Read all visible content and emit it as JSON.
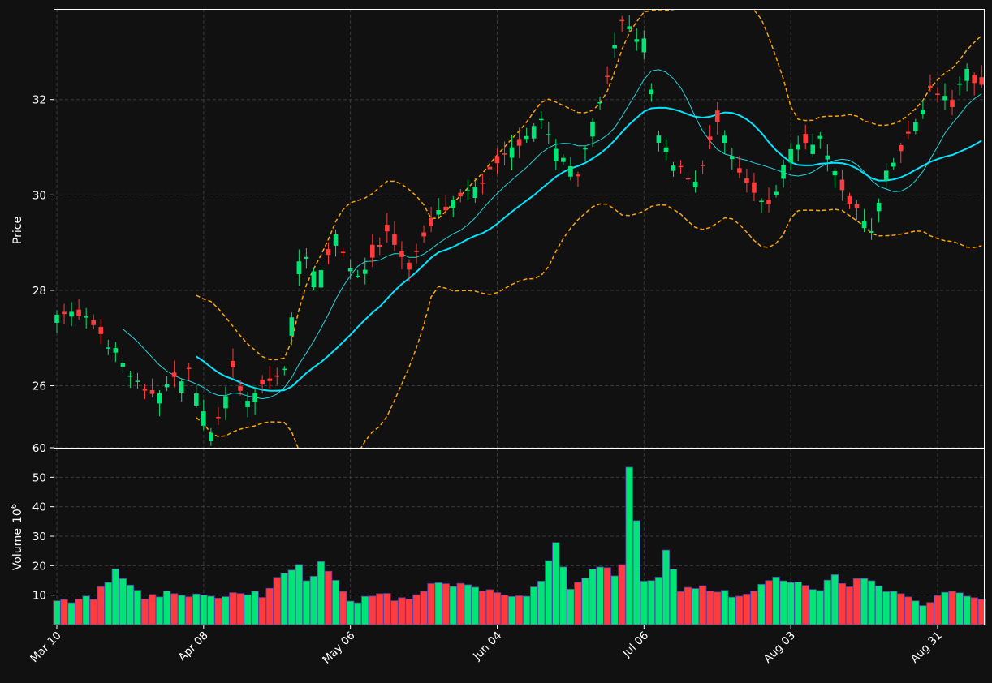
{
  "chart_data": {
    "type": "candlestick",
    "colors": {
      "background": "#111111",
      "up": "#00e676",
      "down": "#ff3b3b",
      "ma_short": "#22d3db",
      "ma_long": "#00e5ff",
      "bands": "#ffa500",
      "grid": "#3a3a3a",
      "axis": "#ffffff"
    },
    "price_panel": {
      "ylabel": "Price",
      "ylim": [
        24.7,
        33.9
      ],
      "yticks": [
        26,
        28,
        30,
        32
      ],
      "grid": true
    },
    "volume_panel": {
      "ylabel": "Volume",
      "ylabel_exp": "6",
      "ylim": [
        0,
        60
      ],
      "yticks": [
        10,
        20,
        30,
        40,
        50,
        60
      ],
      "grid": true
    },
    "x_tick_labels": [
      "Mar 10",
      "Apr 08",
      "May 06",
      "Jun 04",
      "Jul 06",
      "Aug 03",
      "Aug 31"
    ],
    "x_tick_index": [
      0,
      20,
      40,
      60,
      80,
      100,
      120
    ],
    "n_sessions": 127,
    "anchors": {
      "close": [
        [
          0,
          27.6
        ],
        [
          5,
          27.3
        ],
        [
          8,
          26.7
        ],
        [
          12,
          25.8
        ],
        [
          15,
          26.0
        ],
        [
          18,
          26.3
        ],
        [
          21,
          25.0
        ],
        [
          24,
          26.3
        ],
        [
          26,
          25.6
        ],
        [
          28,
          26.0
        ],
        [
          31,
          26.3
        ],
        [
          33,
          28.7
        ],
        [
          36,
          28.4
        ],
        [
          38,
          29.2
        ],
        [
          41,
          28.2
        ],
        [
          45,
          29.2
        ],
        [
          48,
          28.5
        ],
        [
          52,
          29.6
        ],
        [
          56,
          30.0
        ],
        [
          60,
          30.6
        ],
        [
          64,
          31.3
        ],
        [
          66,
          31.6
        ],
        [
          68,
          30.9
        ],
        [
          71,
          30.5
        ],
        [
          74,
          32.0
        ],
        [
          77,
          33.6
        ],
        [
          80,
          33.2
        ],
        [
          82,
          31.2
        ],
        [
          84,
          30.6
        ],
        [
          87,
          30.3
        ],
        [
          90,
          31.5
        ],
        [
          93,
          30.4
        ],
        [
          95,
          30.0
        ],
        [
          97,
          29.7
        ],
        [
          100,
          31.0
        ],
        [
          104,
          31.2
        ],
        [
          106,
          30.4
        ],
        [
          108,
          29.9
        ],
        [
          111,
          29.2
        ],
        [
          113,
          30.4
        ],
        [
          116,
          31.2
        ],
        [
          119,
          32.2
        ],
        [
          122,
          31.9
        ],
        [
          124,
          32.6
        ],
        [
          126,
          32.3
        ]
      ],
      "volume": [
        [
          0,
          8
        ],
        [
          5,
          9
        ],
        [
          8,
          18
        ],
        [
          12,
          9
        ],
        [
          16,
          11
        ],
        [
          20,
          9
        ],
        [
          24,
          11
        ],
        [
          28,
          10
        ],
        [
          30,
          16
        ],
        [
          33,
          20
        ],
        [
          34,
          14
        ],
        [
          36,
          21
        ],
        [
          38,
          14
        ],
        [
          40,
          8
        ],
        [
          44,
          10
        ],
        [
          48,
          8
        ],
        [
          50,
          12
        ],
        [
          52,
          15
        ],
        [
          56,
          13
        ],
        [
          60,
          11
        ],
        [
          64,
          10
        ],
        [
          66,
          15
        ],
        [
          68,
          28
        ],
        [
          70,
          13
        ],
        [
          74,
          20
        ],
        [
          76,
          17
        ],
        [
          77,
          20
        ],
        [
          78,
          54
        ],
        [
          80,
          15
        ],
        [
          82,
          16
        ],
        [
          83,
          25
        ],
        [
          85,
          12
        ],
        [
          88,
          13
        ],
        [
          92,
          10
        ],
        [
          95,
          12
        ],
        [
          98,
          16
        ],
        [
          100,
          14
        ],
        [
          104,
          12
        ],
        [
          106,
          17
        ],
        [
          108,
          13
        ],
        [
          110,
          16
        ],
        [
          114,
          11
        ],
        [
          118,
          7
        ],
        [
          122,
          11
        ],
        [
          126,
          8
        ]
      ],
      "mom": [
        [
          0,
          0.25
        ],
        [
          30,
          0.3
        ],
        [
          33,
          1.5
        ],
        [
          40,
          -0.3
        ],
        [
          60,
          0.3
        ],
        [
          75,
          0.5
        ],
        [
          78,
          0.9
        ],
        [
          85,
          -0.3
        ],
        [
          95,
          -0.2
        ],
        [
          100,
          0.5
        ],
        [
          105,
          -0.5
        ],
        [
          112,
          0.2
        ],
        [
          126,
          0.1
        ]
      ],
      "ma_short_start": 9,
      "ma_long_start": 19,
      "bands_start": 19
    }
  }
}
